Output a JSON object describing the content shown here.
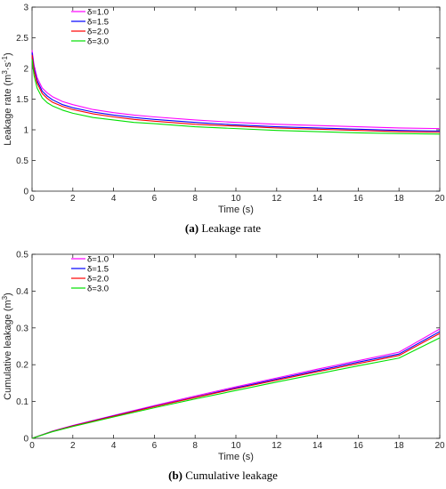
{
  "captions": [
    {
      "letter": "(a)",
      "text": " Leakage rate"
    },
    {
      "letter": "(b)",
      "text": " Cumulative leakage"
    }
  ],
  "series_colors": [
    "#ff00ff",
    "#0000ff",
    "#ff0000",
    "#00e000"
  ],
  "chart_data": [
    {
      "type": "line",
      "xlabel": "Time (s)",
      "ylabel_parts": [
        "Leakage rate (m",
        "3",
        "·s",
        "-1",
        ")"
      ],
      "xlim": [
        0,
        20
      ],
      "ylim": [
        0,
        3
      ],
      "xticks": [
        0,
        2,
        4,
        6,
        8,
        10,
        12,
        14,
        16,
        18,
        20
      ],
      "yticks": [
        0,
        0.5,
        1,
        1.5,
        2,
        2.5,
        3
      ],
      "legend_position": "top-left",
      "x": [
        0,
        0.1,
        0.25,
        0.5,
        0.75,
        1,
        1.5,
        2,
        3,
        4,
        5,
        6,
        8,
        10,
        12,
        14,
        16,
        18,
        20
      ],
      "series": [
        {
          "name": "δ=1.0",
          "values": [
            2.3,
            2.05,
            1.85,
            1.68,
            1.6,
            1.54,
            1.46,
            1.41,
            1.33,
            1.28,
            1.24,
            1.21,
            1.16,
            1.12,
            1.09,
            1.07,
            1.05,
            1.03,
            1.02
          ]
        },
        {
          "name": "δ=1.5",
          "values": [
            2.26,
            2.0,
            1.8,
            1.63,
            1.55,
            1.49,
            1.41,
            1.36,
            1.29,
            1.24,
            1.2,
            1.17,
            1.12,
            1.08,
            1.05,
            1.03,
            1.01,
            0.99,
            0.98
          ]
        },
        {
          "name": "δ=2.0",
          "values": [
            2.22,
            1.96,
            1.76,
            1.59,
            1.51,
            1.45,
            1.38,
            1.33,
            1.26,
            1.21,
            1.17,
            1.14,
            1.09,
            1.06,
            1.03,
            1.01,
            0.99,
            0.97,
            0.96
          ]
        },
        {
          "name": "δ=3.0",
          "values": [
            2.15,
            1.88,
            1.68,
            1.52,
            1.44,
            1.39,
            1.32,
            1.27,
            1.2,
            1.16,
            1.12,
            1.1,
            1.05,
            1.02,
            0.99,
            0.97,
            0.95,
            0.94,
            0.93
          ]
        }
      ]
    },
    {
      "type": "line",
      "xlabel": "Time (s)",
      "ylabel_parts": [
        "Cumulative leakage (m",
        "3",
        ")"
      ],
      "xlim": [
        0,
        20
      ],
      "ylim": [
        0,
        0.5
      ],
      "xticks": [
        0,
        2,
        4,
        6,
        8,
        10,
        12,
        14,
        16,
        18,
        20
      ],
      "yticks": [
        0,
        0.1,
        0.2,
        0.3,
        0.4,
        0.5
      ],
      "legend_position": "top-left",
      "x": [
        0,
        1,
        2,
        4,
        6,
        8,
        10,
        12,
        14,
        16,
        18,
        20
      ],
      "series": [
        {
          "name": "δ=1.0",
          "values": [
            0,
            0.0195,
            0.035,
            0.062,
            0.089,
            0.115,
            0.14,
            0.164,
            0.188,
            0.211,
            0.234,
            0.297
          ]
        },
        {
          "name": "δ=1.5",
          "values": [
            0,
            0.019,
            0.034,
            0.061,
            0.087,
            0.112,
            0.137,
            0.161,
            0.184,
            0.207,
            0.229,
            0.29
          ]
        },
        {
          "name": "δ=2.0",
          "values": [
            0,
            0.0187,
            0.0335,
            0.06,
            0.086,
            0.111,
            0.135,
            0.158,
            0.181,
            0.203,
            0.225,
            0.285
          ]
        },
        {
          "name": "δ=3.0",
          "values": [
            0,
            0.018,
            0.032,
            0.058,
            0.083,
            0.107,
            0.13,
            0.153,
            0.175,
            0.197,
            0.218,
            0.273
          ]
        }
      ]
    }
  ]
}
